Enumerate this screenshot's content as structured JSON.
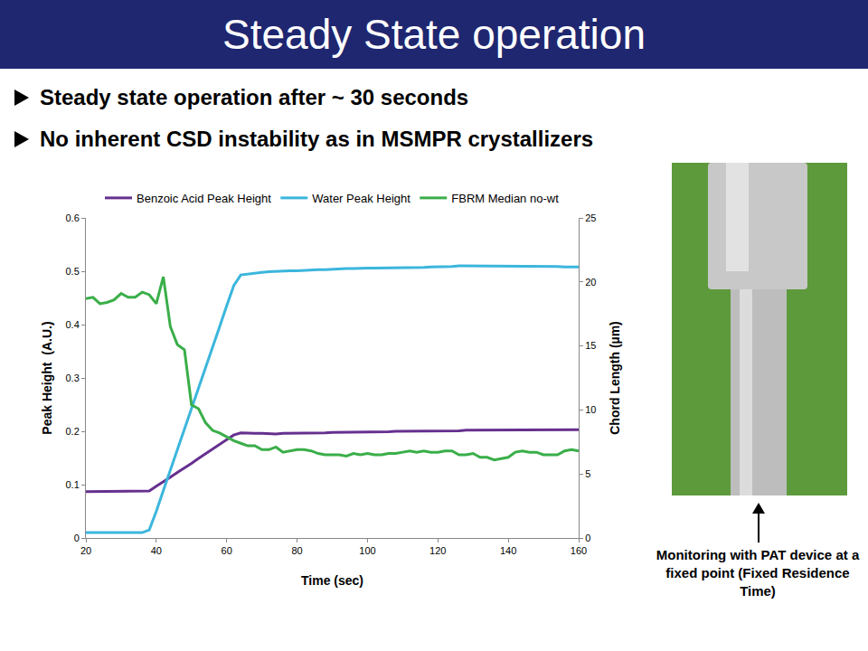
{
  "slide": {
    "title": "Steady State operation",
    "bullets": [
      "Steady state operation after ~ 30 seconds",
      "No inherent CSD instability as in MSMPR crystallizers"
    ],
    "caption": "Monitoring with PAT device at a fixed point (Fixed Residence Time)"
  },
  "chart_data": {
    "type": "line",
    "x_label": "Time (sec)",
    "y_label": "Peak Height  (A.U.)",
    "y2_label": "Chord Length (µm)",
    "x": [
      20,
      22,
      24,
      26,
      28,
      30,
      32,
      34,
      36,
      38,
      40,
      42,
      44,
      46,
      48,
      50,
      52,
      54,
      56,
      58,
      60,
      62,
      64,
      66,
      68,
      70,
      72,
      74,
      76,
      78,
      80,
      82,
      84,
      86,
      88,
      90,
      92,
      94,
      96,
      98,
      100,
      102,
      104,
      106,
      108,
      110,
      112,
      114,
      116,
      118,
      120,
      122,
      124,
      126,
      128,
      130,
      132,
      134,
      136,
      138,
      140,
      142,
      144,
      146,
      148,
      150,
      152,
      154,
      156,
      158,
      160
    ],
    "series": [
      {
        "name": "Benzoic Acid Peak Height",
        "color": "#66308f",
        "values": [
          0.087,
          0.087,
          0.087,
          0.087,
          0.087,
          0.087,
          0.087,
          0.087,
          0.087,
          0.088,
          0.097,
          0.105,
          0.114,
          0.123,
          0.131,
          0.14,
          0.149,
          0.158,
          0.166,
          0.175,
          0.184,
          0.193,
          0.197,
          0.196,
          0.196,
          0.196,
          0.195,
          0.195,
          0.196,
          0.196,
          0.196,
          0.197,
          0.197,
          0.197,
          0.197,
          0.198,
          0.198,
          0.198,
          0.198,
          0.199,
          0.199,
          0.199,
          0.199,
          0.199,
          0.2,
          0.2,
          0.2,
          0.2,
          0.2,
          0.201,
          0.201,
          0.201,
          0.201,
          0.201,
          0.202,
          0.202,
          0.202,
          0.202,
          0.202,
          0.202,
          0.203,
          0.203,
          0.203,
          0.203,
          0.203,
          0.203,
          0.203,
          0.203,
          0.203,
          0.203,
          0.203
        ]
      },
      {
        "name": "Water Peak Height",
        "color": "#3bb6dc",
        "values": [
          0.01,
          0.01,
          0.01,
          0.01,
          0.01,
          0.01,
          0.01,
          0.01,
          0.01,
          0.015,
          0.05,
          0.089,
          0.127,
          0.166,
          0.204,
          0.243,
          0.281,
          0.319,
          0.358,
          0.396,
          0.435,
          0.473,
          0.493,
          0.495,
          0.497,
          0.498,
          0.499,
          0.5,
          0.5,
          0.501,
          0.501,
          0.502,
          0.502,
          0.503,
          0.503,
          0.504,
          0.504,
          0.505,
          0.505,
          0.506,
          0.506,
          0.506,
          0.506,
          0.506,
          0.506,
          0.506,
          0.507,
          0.507,
          0.507,
          0.508,
          0.508,
          0.509,
          0.509,
          0.51,
          0.51,
          0.51,
          0.51,
          0.51,
          0.51,
          0.51,
          0.51,
          0.51,
          0.51,
          0.51,
          0.509,
          0.509,
          0.509,
          0.509,
          0.508,
          0.508,
          0.508
        ]
      },
      {
        "name": "FBRM Median no-wt",
        "color": "#3aae49",
        "axis": "y2",
        "values": [
          18.7,
          18.8,
          18.3,
          18.4,
          18.6,
          19.1,
          18.8,
          18.8,
          19.2,
          19.0,
          18.3,
          20.4,
          16.5,
          15.1,
          14.7,
          10.4,
          10.1,
          9.0,
          8.4,
          8.2,
          7.9,
          7.6,
          7.4,
          7.2,
          7.2,
          6.9,
          6.9,
          7.1,
          6.7,
          6.8,
          6.9,
          6.9,
          6.8,
          6.6,
          6.5,
          6.5,
          6.5,
          6.4,
          6.6,
          6.5,
          6.6,
          6.5,
          6.5,
          6.6,
          6.6,
          6.7,
          6.8,
          6.7,
          6.8,
          6.7,
          6.7,
          6.8,
          6.8,
          6.5,
          6.5,
          6.6,
          6.3,
          6.3,
          6.1,
          6.2,
          6.3,
          6.7,
          6.8,
          6.7,
          6.7,
          6.5,
          6.5,
          6.5,
          6.8,
          6.9,
          6.8
        ]
      }
    ],
    "xlim": [
      20,
      160
    ],
    "xticks": [
      20,
      40,
      60,
      80,
      100,
      120,
      140,
      160
    ],
    "ylim": [
      0,
      0.6
    ],
    "yticks": [
      0,
      0.1,
      0.2,
      0.3,
      0.4,
      0.5,
      0.6
    ],
    "y2lim": [
      0,
      25
    ],
    "y2ticks": [
      0,
      5,
      10,
      15,
      20,
      25
    ],
    "grid": false,
    "legend": "top"
  }
}
